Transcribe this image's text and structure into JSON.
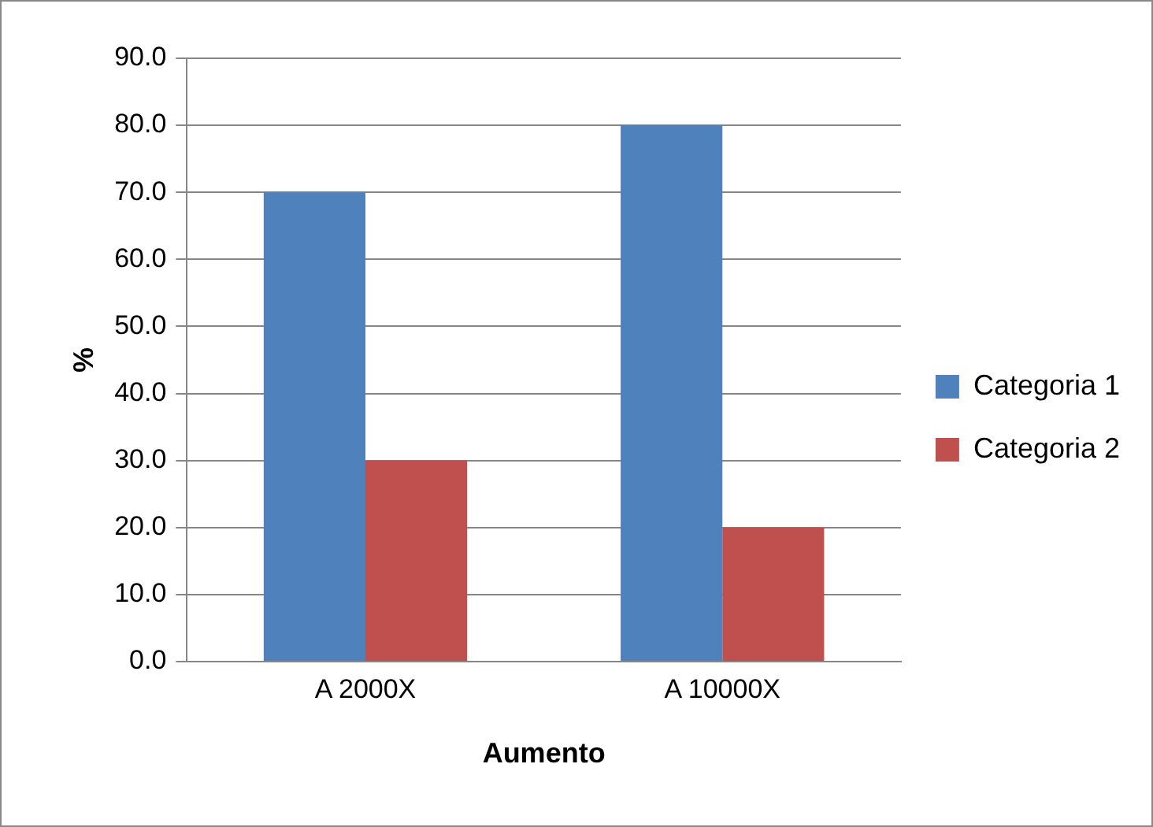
{
  "chart_data": {
    "type": "bar",
    "xlabel": "Aumento",
    "ylabel": "%",
    "categories": [
      "A 2000X",
      "A 10000X"
    ],
    "series": [
      {
        "name": "Categoria 1",
        "color": "#4f81bd",
        "values": [
          70,
          80
        ]
      },
      {
        "name": "Categoria 2",
        "color": "#c0504d",
        "values": [
          30,
          20
        ]
      }
    ],
    "ylim": [
      0,
      90
    ],
    "yticks": [
      {
        "value": 0,
        "label": "0.0"
      },
      {
        "value": 10,
        "label": "10.0"
      },
      {
        "value": 20,
        "label": "20.0"
      },
      {
        "value": 30,
        "label": "30.0"
      },
      {
        "value": 40,
        "label": "40.0"
      },
      {
        "value": 50,
        "label": "50.0"
      },
      {
        "value": 60,
        "label": "60.0"
      },
      {
        "value": 70,
        "label": "70.0"
      },
      {
        "value": 80,
        "label": "80.0"
      },
      {
        "value": 90,
        "label": "90.0"
      }
    ],
    "grid": "y",
    "legend": "right"
  }
}
